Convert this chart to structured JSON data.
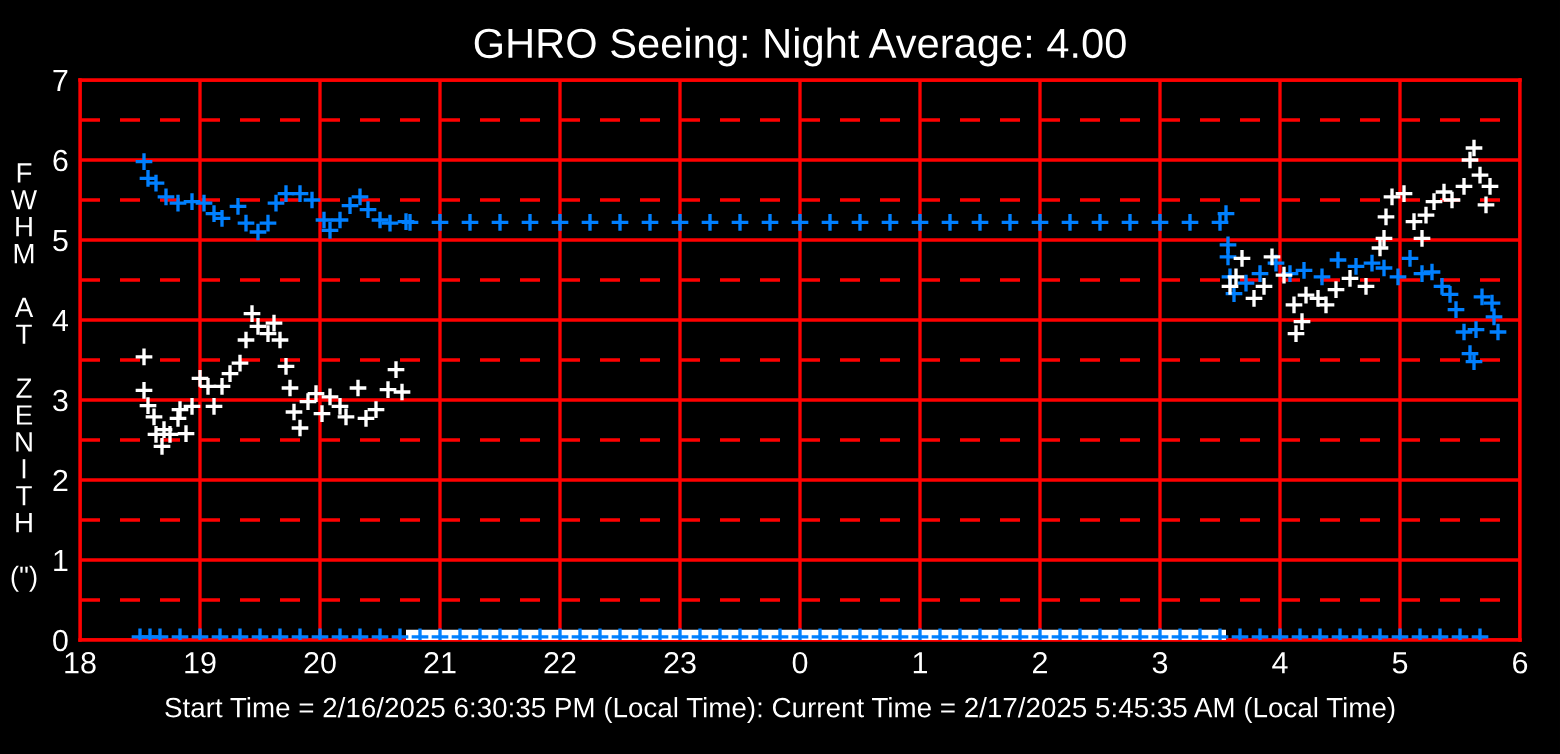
{
  "chart_data": {
    "type": "scatter",
    "title": "GHRO Seeing: Night Average: 4.00",
    "ylabel": "FWHM AT ZENITH (\")",
    "annotations": [
      "Start Time = 2/16/2025 6:30:35 PM (Local Time): Current Time = 2/17/2025 5:45:35 AM (Local Time)"
    ],
    "xlim": [
      "2025-02-16T18:00",
      "2025-02-17T06:00"
    ],
    "ylim": [
      0,
      7
    ],
    "xticks": [
      {
        "value": "2025-02-16T18:00",
        "label": "18"
      },
      {
        "value": "2025-02-16T19:00",
        "label": "19"
      },
      {
        "value": "2025-02-16T20:00",
        "label": "20"
      },
      {
        "value": "2025-02-16T21:00",
        "label": "21"
      },
      {
        "value": "2025-02-16T22:00",
        "label": "22"
      },
      {
        "value": "2025-02-16T23:00",
        "label": "23"
      },
      {
        "value": "2025-02-17T00:00",
        "label": "0"
      },
      {
        "value": "2025-02-17T01:00",
        "label": "1"
      },
      {
        "value": "2025-02-17T02:00",
        "label": "2"
      },
      {
        "value": "2025-02-17T03:00",
        "label": "3"
      },
      {
        "value": "2025-02-17T04:00",
        "label": "4"
      },
      {
        "value": "2025-02-17T05:00",
        "label": "5"
      },
      {
        "value": "2025-02-17T06:00",
        "label": "6"
      }
    ],
    "yticks": [
      0,
      1,
      2,
      3,
      4,
      5,
      6,
      7
    ],
    "grid": true,
    "marker": "cross",
    "ref_lines": [
      {
        "axis": "y",
        "value": 0.5,
        "color": "#ff0000",
        "line_style": "dashed"
      },
      {
        "axis": "y",
        "value": 1.5,
        "color": "#ff0000",
        "line_style": "dashed"
      },
      {
        "axis": "y",
        "value": 2.5,
        "color": "#ff0000",
        "line_style": "dashed"
      },
      {
        "axis": "y",
        "value": 3.5,
        "color": "#ff0000",
        "line_style": "dashed"
      },
      {
        "axis": "y",
        "value": 4.5,
        "color": "#ff0000",
        "line_style": "dashed"
      },
      {
        "axis": "y",
        "value": 5.5,
        "color": "#ff0000",
        "line_style": "dashed"
      },
      {
        "axis": "y",
        "value": 6.5,
        "color": "#ff0000",
        "line_style": "dashed"
      }
    ],
    "series": [
      {
        "color": "#ffffff",
        "type": "line",
        "marker": "none",
        "x": [
          "2025-02-16T20:43",
          "2025-02-17T03:33"
        ],
        "values": [
          0.04,
          0.04
        ]
      },
      {
        "color": "#0080ff",
        "x": [
          "2025-02-16T18:32",
          "2025-02-16T18:34",
          "2025-02-16T18:38",
          "2025-02-16T18:43",
          "2025-02-16T18:49",
          "2025-02-16T18:56",
          "2025-02-16T19:02",
          "2025-02-16T19:07",
          "2025-02-16T19:11",
          "2025-02-16T19:19",
          "2025-02-16T19:23",
          "2025-02-16T19:29",
          "2025-02-16T19:34",
          "2025-02-16T19:38",
          "2025-02-16T19:43",
          "2025-02-16T19:50",
          "2025-02-16T19:56",
          "2025-02-16T20:02",
          "2025-02-16T20:05",
          "2025-02-16T20:10",
          "2025-02-16T20:15",
          "2025-02-16T20:20",
          "2025-02-16T20:24",
          "2025-02-16T20:30",
          "2025-02-16T20:35",
          "2025-02-16T20:43",
          "2025-02-16T20:45",
          "2025-02-16T21:00",
          "2025-02-16T21:15",
          "2025-02-16T21:30",
          "2025-02-16T21:45",
          "2025-02-16T22:00",
          "2025-02-16T22:15",
          "2025-02-16T22:30",
          "2025-02-16T22:45",
          "2025-02-16T23:00",
          "2025-02-16T23:15",
          "2025-02-16T23:30",
          "2025-02-16T23:45",
          "2025-02-17T00:00",
          "2025-02-17T00:15",
          "2025-02-17T00:30",
          "2025-02-17T00:45",
          "2025-02-17T01:00",
          "2025-02-17T01:15",
          "2025-02-17T01:30",
          "2025-02-17T01:45",
          "2025-02-17T02:00",
          "2025-02-17T02:15",
          "2025-02-17T02:30",
          "2025-02-17T02:45",
          "2025-02-17T03:00",
          "2025-02-17T03:15",
          "2025-02-17T03:30",
          "2025-02-17T03:33",
          "2025-02-17T03:34",
          "2025-02-17T03:34",
          "2025-02-17T03:35",
          "2025-02-17T03:37",
          "2025-02-17T03:43",
          "2025-02-17T03:50",
          "2025-02-17T03:58",
          "2025-02-17T04:05",
          "2025-02-17T04:12",
          "2025-02-17T04:21",
          "2025-02-17T04:29",
          "2025-02-17T04:38",
          "2025-02-17T04:46",
          "2025-02-17T04:52",
          "2025-02-17T04:59",
          "2025-02-17T05:05",
          "2025-02-17T05:11",
          "2025-02-17T05:16",
          "2025-02-17T05:21",
          "2025-02-17T05:25",
          "2025-02-17T05:28",
          "2025-02-17T05:32",
          "2025-02-17T05:35",
          "2025-02-17T05:37",
          "2025-02-17T05:38",
          "2025-02-17T05:41",
          "2025-02-17T05:46",
          "2025-02-17T05:47",
          "2025-02-17T05:49"
        ],
        "values": [
          5.98,
          5.77,
          5.71,
          5.54,
          5.46,
          5.48,
          5.46,
          5.33,
          5.27,
          5.42,
          5.21,
          5.1,
          5.21,
          5.46,
          5.58,
          5.58,
          5.5,
          5.25,
          5.12,
          5.25,
          5.43,
          5.54,
          5.38,
          5.25,
          5.21,
          5.23,
          5.22,
          5.22,
          5.22,
          5.22,
          5.22,
          5.22,
          5.22,
          5.22,
          5.22,
          5.22,
          5.22,
          5.22,
          5.22,
          5.22,
          5.22,
          5.22,
          5.22,
          5.22,
          5.22,
          5.22,
          5.22,
          5.22,
          5.22,
          5.22,
          5.22,
          5.22,
          5.22,
          5.22,
          5.33,
          4.94,
          4.79,
          4.54,
          4.33,
          4.46,
          4.58,
          4.71,
          4.58,
          4.62,
          4.54,
          4.75,
          4.67,
          4.71,
          4.65,
          4.54,
          4.77,
          4.58,
          4.6,
          4.42,
          4.32,
          4.13,
          3.85,
          3.58,
          3.48,
          3.88,
          4.29,
          4.21,
          4.04,
          3.85
        ]
      },
      {
        "color": "#ffffff",
        "x": [
          "2025-02-16T18:32",
          "2025-02-16T18:32",
          "2025-02-16T18:34",
          "2025-02-16T18:37",
          "2025-02-16T18:38",
          "2025-02-16T18:41",
          "2025-02-16T18:42",
          "2025-02-16T18:45",
          "2025-02-16T18:49",
          "2025-02-16T18:50",
          "2025-02-16T18:53",
          "2025-02-16T18:56",
          "2025-02-16T19:00",
          "2025-02-16T19:04",
          "2025-02-16T19:07",
          "2025-02-16T19:11",
          "2025-02-16T19:15",
          "2025-02-16T19:20",
          "2025-02-16T19:23",
          "2025-02-16T19:26",
          "2025-02-16T19:29",
          "2025-02-16T19:34",
          "2025-02-16T19:37",
          "2025-02-16T19:40",
          "2025-02-16T19:43",
          "2025-02-16T19:45",
          "2025-02-16T19:47",
          "2025-02-16T19:50",
          "2025-02-16T19:54",
          "2025-02-16T19:58",
          "2025-02-16T20:01",
          "2025-02-16T20:05",
          "2025-02-16T20:10",
          "2025-02-16T20:13",
          "2025-02-16T20:19",
          "2025-02-16T20:23",
          "2025-02-16T20:28",
          "2025-02-16T20:34",
          "2025-02-16T20:38",
          "2025-02-16T20:41",
          "2025-02-17T03:35",
          "2025-02-17T03:38",
          "2025-02-17T03:41",
          "2025-02-17T03:47",
          "2025-02-17T03:52",
          "2025-02-17T03:56",
          "2025-02-17T04:02",
          "2025-02-17T04:07",
          "2025-02-17T04:08",
          "2025-02-17T04:11",
          "2025-02-17T04:13",
          "2025-02-17T04:19",
          "2025-02-17T04:23",
          "2025-02-17T04:28",
          "2025-02-17T04:35",
          "2025-02-17T04:43",
          "2025-02-17T04:50",
          "2025-02-17T04:52",
          "2025-02-17T04:53",
          "2025-02-17T04:56",
          "2025-02-17T05:02",
          "2025-02-17T05:07",
          "2025-02-17T05:11",
          "2025-02-17T05:13",
          "2025-02-17T05:17",
          "2025-02-17T05:22",
          "2025-02-17T05:26",
          "2025-02-17T05:32",
          "2025-02-17T05:35",
          "2025-02-17T05:37",
          "2025-02-17T05:40",
          "2025-02-17T05:43",
          "2025-02-17T05:45"
        ],
        "values": [
          3.54,
          3.12,
          2.93,
          2.79,
          2.57,
          2.42,
          2.63,
          2.57,
          2.77,
          2.88,
          2.58,
          2.92,
          3.27,
          3.17,
          2.92,
          3.17,
          3.33,
          3.46,
          3.75,
          4.08,
          3.92,
          3.83,
          3.96,
          3.75,
          3.42,
          3.15,
          2.85,
          2.65,
          2.98,
          3.08,
          2.83,
          3.04,
          2.92,
          2.79,
          3.15,
          2.77,
          2.88,
          3.13,
          3.38,
          3.1,
          4.42,
          4.54,
          4.77,
          4.27,
          4.42,
          4.79,
          4.56,
          4.19,
          3.83,
          3.98,
          4.31,
          4.27,
          4.19,
          4.38,
          4.52,
          4.42,
          4.9,
          5.02,
          5.29,
          5.54,
          5.58,
          5.23,
          5.02,
          5.31,
          5.48,
          5.6,
          5.5,
          5.67,
          6.0,
          6.15,
          5.81,
          5.44,
          5.67
        ]
      },
      {
        "color": "#0080ff",
        "x": [
          "2025-02-16T18:30",
          "2025-02-16T18:35",
          "2025-02-16T18:40",
          "2025-02-16T18:50",
          "2025-02-16T19:00",
          "2025-02-16T19:10",
          "2025-02-16T19:20",
          "2025-02-16T19:30",
          "2025-02-16T19:40",
          "2025-02-16T19:50",
          "2025-02-16T20:00",
          "2025-02-16T20:10",
          "2025-02-16T20:20",
          "2025-02-16T20:30",
          "2025-02-16T20:40",
          "2025-02-16T20:50",
          "2025-02-16T21:00",
          "2025-02-16T21:10",
          "2025-02-16T21:20",
          "2025-02-16T21:30",
          "2025-02-16T21:40",
          "2025-02-16T21:50",
          "2025-02-16T22:00",
          "2025-02-16T22:10",
          "2025-02-16T22:20",
          "2025-02-16T22:30",
          "2025-02-16T22:40",
          "2025-02-16T22:50",
          "2025-02-16T23:00",
          "2025-02-16T23:10",
          "2025-02-16T23:20",
          "2025-02-16T23:30",
          "2025-02-16T23:40",
          "2025-02-16T23:50",
          "2025-02-17T00:00",
          "2025-02-17T00:10",
          "2025-02-17T00:20",
          "2025-02-17T00:30",
          "2025-02-17T00:40",
          "2025-02-17T00:50",
          "2025-02-17T01:00",
          "2025-02-17T01:10",
          "2025-02-17T01:20",
          "2025-02-17T01:30",
          "2025-02-17T01:40",
          "2025-02-17T01:50",
          "2025-02-17T02:00",
          "2025-02-17T02:10",
          "2025-02-17T02:20",
          "2025-02-17T02:30",
          "2025-02-17T02:40",
          "2025-02-17T02:50",
          "2025-02-17T03:00",
          "2025-02-17T03:10",
          "2025-02-17T03:20",
          "2025-02-17T03:30",
          "2025-02-17T03:40",
          "2025-02-17T03:50",
          "2025-02-17T04:00",
          "2025-02-17T04:10",
          "2025-02-17T04:20",
          "2025-02-17T04:30",
          "2025-02-17T04:40",
          "2025-02-17T04:50",
          "2025-02-17T05:00",
          "2025-02-17T05:10",
          "2025-02-17T05:20",
          "2025-02-17T05:30",
          "2025-02-17T05:40"
        ],
        "values": [
          0.04,
          0.04,
          0.04,
          0.04,
          0.04,
          0.04,
          0.04,
          0.04,
          0.04,
          0.04,
          0.04,
          0.04,
          0.04,
          0.04,
          0.04,
          0.04,
          0.04,
          0.04,
          0.04,
          0.04,
          0.04,
          0.04,
          0.04,
          0.04,
          0.04,
          0.04,
          0.04,
          0.04,
          0.04,
          0.04,
          0.04,
          0.04,
          0.04,
          0.04,
          0.04,
          0.04,
          0.04,
          0.04,
          0.04,
          0.04,
          0.04,
          0.04,
          0.04,
          0.04,
          0.04,
          0.04,
          0.04,
          0.04,
          0.04,
          0.04,
          0.04,
          0.04,
          0.04,
          0.04,
          0.04,
          0.04,
          0.04,
          0.04,
          0.04,
          0.04,
          0.04,
          0.04,
          0.04,
          0.04,
          0.04,
          0.04,
          0.04,
          0.04,
          0.04
        ]
      }
    ]
  }
}
